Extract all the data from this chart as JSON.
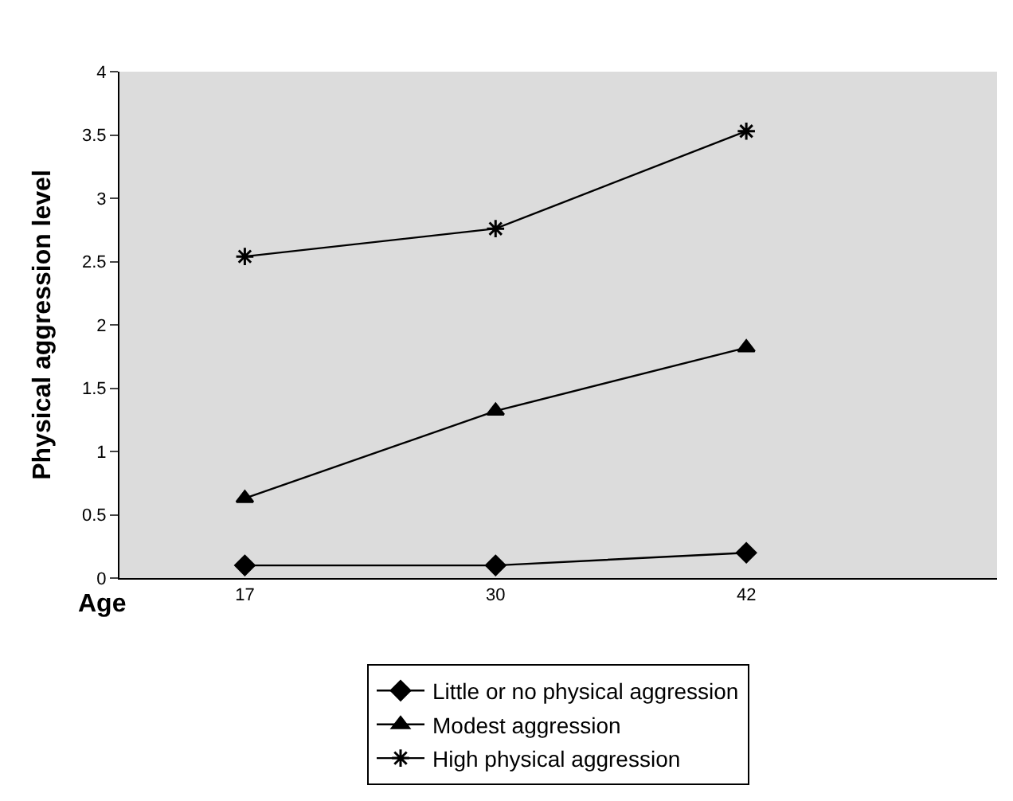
{
  "chart_data": {
    "type": "line",
    "xlabel": "Age",
    "ylabel": "Physical aggression level",
    "categories": [
      "17",
      "30",
      "42"
    ],
    "ylim": [
      0,
      4
    ],
    "yticks": [
      0,
      0.5,
      1,
      1.5,
      2,
      2.5,
      3,
      3.5,
      4
    ],
    "grid": false,
    "legend": "bottom",
    "line_style": "solid",
    "series": [
      {
        "name": "Little or no physical aggression",
        "color": "#000000",
        "marker": "diamond",
        "values": [
          0.1,
          0.1,
          0.2
        ]
      },
      {
        "name": "Modest aggression",
        "color": "#000000",
        "marker": "triangle",
        "values": [
          0.63,
          1.32,
          1.82
        ]
      },
      {
        "name": "High physical aggression",
        "color": "#000000",
        "marker": "cross",
        "values": [
          2.54,
          2.76,
          3.53
        ]
      }
    ]
  }
}
